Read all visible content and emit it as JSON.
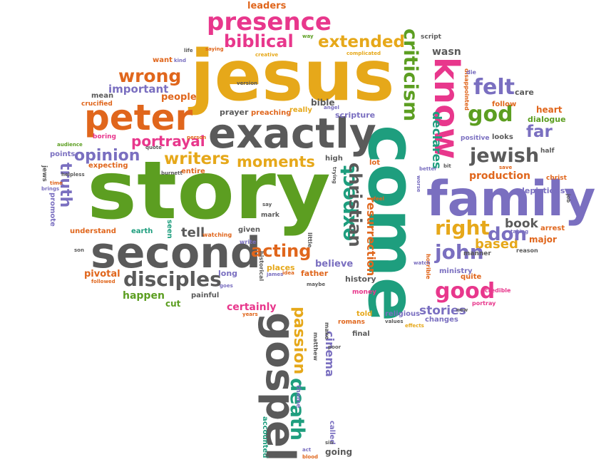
{
  "palette": {
    "magenta": "#e8378c",
    "orange": "#e0661c",
    "green": "#5c9e21",
    "gold": "#e6a81a",
    "purple": "#7a6fc0",
    "gray": "#5a5a5a",
    "teal": "#1e9e7e"
  },
  "words": [
    {
      "text": "story",
      "color": "green"
    },
    {
      "text": "jesus",
      "color": "gold"
    },
    {
      "text": "come",
      "color": "teal"
    },
    {
      "text": "family",
      "color": "purple"
    },
    {
      "text": "exactly",
      "color": "gray"
    },
    {
      "text": "second",
      "color": "gray"
    },
    {
      "text": "gospel",
      "color": "gray"
    },
    {
      "text": "peter",
      "color": "orange"
    },
    {
      "text": "know",
      "color": "magenta"
    },
    {
      "text": "presence",
      "color": "magenta"
    },
    {
      "text": "biblical",
      "color": "magenta"
    },
    {
      "text": "extended",
      "color": "gold"
    },
    {
      "text": "criticism",
      "color": "green"
    },
    {
      "text": "felt",
      "color": "purple"
    },
    {
      "text": "god",
      "color": "green"
    },
    {
      "text": "far",
      "color": "purple"
    },
    {
      "text": "jewish",
      "color": "gray"
    },
    {
      "text": "wrong",
      "color": "orange"
    },
    {
      "text": "disciples",
      "color": "gray"
    },
    {
      "text": "writers",
      "color": "gold"
    },
    {
      "text": "moments",
      "color": "gold"
    },
    {
      "text": "opinion",
      "color": "purple"
    },
    {
      "text": "portrayal",
      "color": "magenta"
    },
    {
      "text": "truth",
      "color": "purple"
    },
    {
      "text": "expect",
      "color": "teal"
    },
    {
      "text": "christian",
      "color": "gray"
    },
    {
      "text": "acting",
      "color": "orange"
    },
    {
      "text": "right",
      "color": "gold"
    },
    {
      "text": "john",
      "color": "purple"
    },
    {
      "text": "based",
      "color": "gold"
    },
    {
      "text": "don",
      "color": "purple"
    },
    {
      "text": "good",
      "color": "magenta"
    },
    {
      "text": "stories",
      "color": "purple"
    },
    {
      "text": "book",
      "color": "gray"
    },
    {
      "text": "death",
      "color": "teal"
    },
    {
      "text": "passion",
      "color": "gold"
    },
    {
      "text": "cinema",
      "color": "purple"
    },
    {
      "text": "resurrection",
      "color": "orange"
    },
    {
      "text": "declares",
      "color": "teal"
    },
    {
      "text": "leaders",
      "color": "orange"
    },
    {
      "text": "wasn",
      "color": "gray"
    },
    {
      "text": "script",
      "color": "gray"
    },
    {
      "text": "bible",
      "color": "gray"
    },
    {
      "text": "scripture",
      "color": "purple"
    },
    {
      "text": "people",
      "color": "orange"
    },
    {
      "text": "important",
      "color": "purple"
    },
    {
      "text": "heart",
      "color": "orange"
    },
    {
      "text": "dialogue",
      "color": "green"
    },
    {
      "text": "production",
      "color": "orange"
    },
    {
      "text": "depictions",
      "color": "purple"
    },
    {
      "text": "christ",
      "color": "orange"
    },
    {
      "text": "major",
      "color": "orange"
    },
    {
      "text": "arrest",
      "color": "orange"
    },
    {
      "text": "tell",
      "color": "gray"
    },
    {
      "text": "believe",
      "color": "purple"
    },
    {
      "text": "places",
      "color": "gold"
    },
    {
      "text": "father",
      "color": "orange"
    },
    {
      "text": "history",
      "color": "gray"
    },
    {
      "text": "money",
      "color": "magenta"
    },
    {
      "text": "happen",
      "color": "green"
    },
    {
      "text": "pivotal",
      "color": "orange"
    },
    {
      "text": "certainly",
      "color": "magenta"
    },
    {
      "text": "painful",
      "color": "gray"
    },
    {
      "text": "cut",
      "color": "green"
    },
    {
      "text": "told",
      "color": "gold"
    },
    {
      "text": "romans",
      "color": "orange"
    },
    {
      "text": "final",
      "color": "gray"
    },
    {
      "text": "religious",
      "color": "purple"
    },
    {
      "text": "changes",
      "color": "purple"
    },
    {
      "text": "ministry",
      "color": "purple"
    },
    {
      "text": "quite",
      "color": "orange"
    },
    {
      "text": "prayer",
      "color": "gray"
    },
    {
      "text": "preaching",
      "color": "orange"
    },
    {
      "text": "really",
      "color": "gold"
    },
    {
      "text": "want",
      "color": "orange"
    },
    {
      "text": "mean",
      "color": "gray"
    },
    {
      "text": "crucified",
      "color": "orange"
    },
    {
      "text": "boring",
      "color": "magenta"
    },
    {
      "text": "points",
      "color": "purple"
    },
    {
      "text": "expecting",
      "color": "orange"
    },
    {
      "text": "entire",
      "color": "orange"
    },
    {
      "text": "understand",
      "color": "orange"
    },
    {
      "text": "promote",
      "color": "purple"
    },
    {
      "text": "earth",
      "color": "teal"
    },
    {
      "text": "seen",
      "color": "teal"
    },
    {
      "text": "given",
      "color": "gray"
    },
    {
      "text": "mark",
      "color": "gray"
    },
    {
      "text": "long",
      "color": "purple"
    },
    {
      "text": "going",
      "color": "gray"
    },
    {
      "text": "called",
      "color": "purple"
    },
    {
      "text": "accounted",
      "color": "teal"
    },
    {
      "text": "matthew",
      "color": "gray"
    },
    {
      "text": "make",
      "color": "gray"
    },
    {
      "text": "theme",
      "color": "purple"
    },
    {
      "text": "historical",
      "color": "gray"
    },
    {
      "text": "little",
      "color": "gray"
    },
    {
      "text": "high",
      "color": "gray"
    },
    {
      "text": "lot",
      "color": "orange"
    },
    {
      "text": "care",
      "color": "gray"
    },
    {
      "text": "follow",
      "color": "orange"
    },
    {
      "text": "looks",
      "color": "gray"
    },
    {
      "text": "half",
      "color": "gray"
    },
    {
      "text": "positive",
      "color": "purple"
    },
    {
      "text": "disappointed",
      "color": "orange"
    },
    {
      "text": "horrible",
      "color": "orange"
    },
    {
      "text": "reason",
      "color": "gray"
    },
    {
      "text": "credible",
      "color": "magenta"
    },
    {
      "text": "portray",
      "color": "magenta"
    },
    {
      "text": "watching",
      "color": "orange"
    },
    {
      "text": "write",
      "color": "purple"
    },
    {
      "text": "jews",
      "color": "gray"
    },
    {
      "text": "brings",
      "color": "purple"
    },
    {
      "text": "helpless",
      "color": "gray"
    },
    {
      "text": "burnett",
      "color": "gray"
    },
    {
      "text": "quote",
      "color": "gray"
    },
    {
      "text": "person",
      "color": "orange"
    },
    {
      "text": "audience",
      "color": "green"
    },
    {
      "text": "version",
      "color": "gray"
    },
    {
      "text": "angel",
      "color": "purple"
    },
    {
      "text": "creative",
      "color": "gold"
    },
    {
      "text": "complicated",
      "color": "gold"
    },
    {
      "text": "saying",
      "color": "orange"
    },
    {
      "text": "life",
      "color": "gray"
    },
    {
      "text": "kind",
      "color": "purple"
    },
    {
      "text": "way",
      "color": "green"
    },
    {
      "text": "die",
      "color": "purple"
    },
    {
      "text": "bit",
      "color": "gray"
    },
    {
      "text": "better",
      "color": "purple"
    },
    {
      "text": "worse",
      "color": "purple"
    },
    {
      "text": "save",
      "color": "orange"
    },
    {
      "text": "taking",
      "color": "purple"
    },
    {
      "text": "watch",
      "color": "purple"
    },
    {
      "text": "feel",
      "color": "orange"
    },
    {
      "text": "trying",
      "color": "gray"
    },
    {
      "text": "manner",
      "color": "gray"
    },
    {
      "text": "followed",
      "color": "orange"
    },
    {
      "text": "goes",
      "color": "purple"
    },
    {
      "text": "idea",
      "color": "orange"
    },
    {
      "text": "james",
      "color": "purple"
    },
    {
      "text": "maybe",
      "color": "gray"
    },
    {
      "text": "years",
      "color": "orange"
    },
    {
      "text": "sin",
      "color": "gray"
    },
    {
      "text": "screen",
      "color": "gray"
    },
    {
      "text": "act",
      "color": "purple"
    },
    {
      "text": "blood",
      "color": "orange"
    },
    {
      "text": "poor",
      "color": "gray"
    },
    {
      "text": "values",
      "color": "gray"
    },
    {
      "text": "effects",
      "color": "gold"
    },
    {
      "text": "new",
      "color": "gray"
    },
    {
      "text": "say",
      "color": "gray"
    },
    {
      "text": "son",
      "color": "gray"
    },
    {
      "text": "time",
      "color": "orange"
    },
    {
      "text": "job",
      "color": "gray"
    }
  ]
}
